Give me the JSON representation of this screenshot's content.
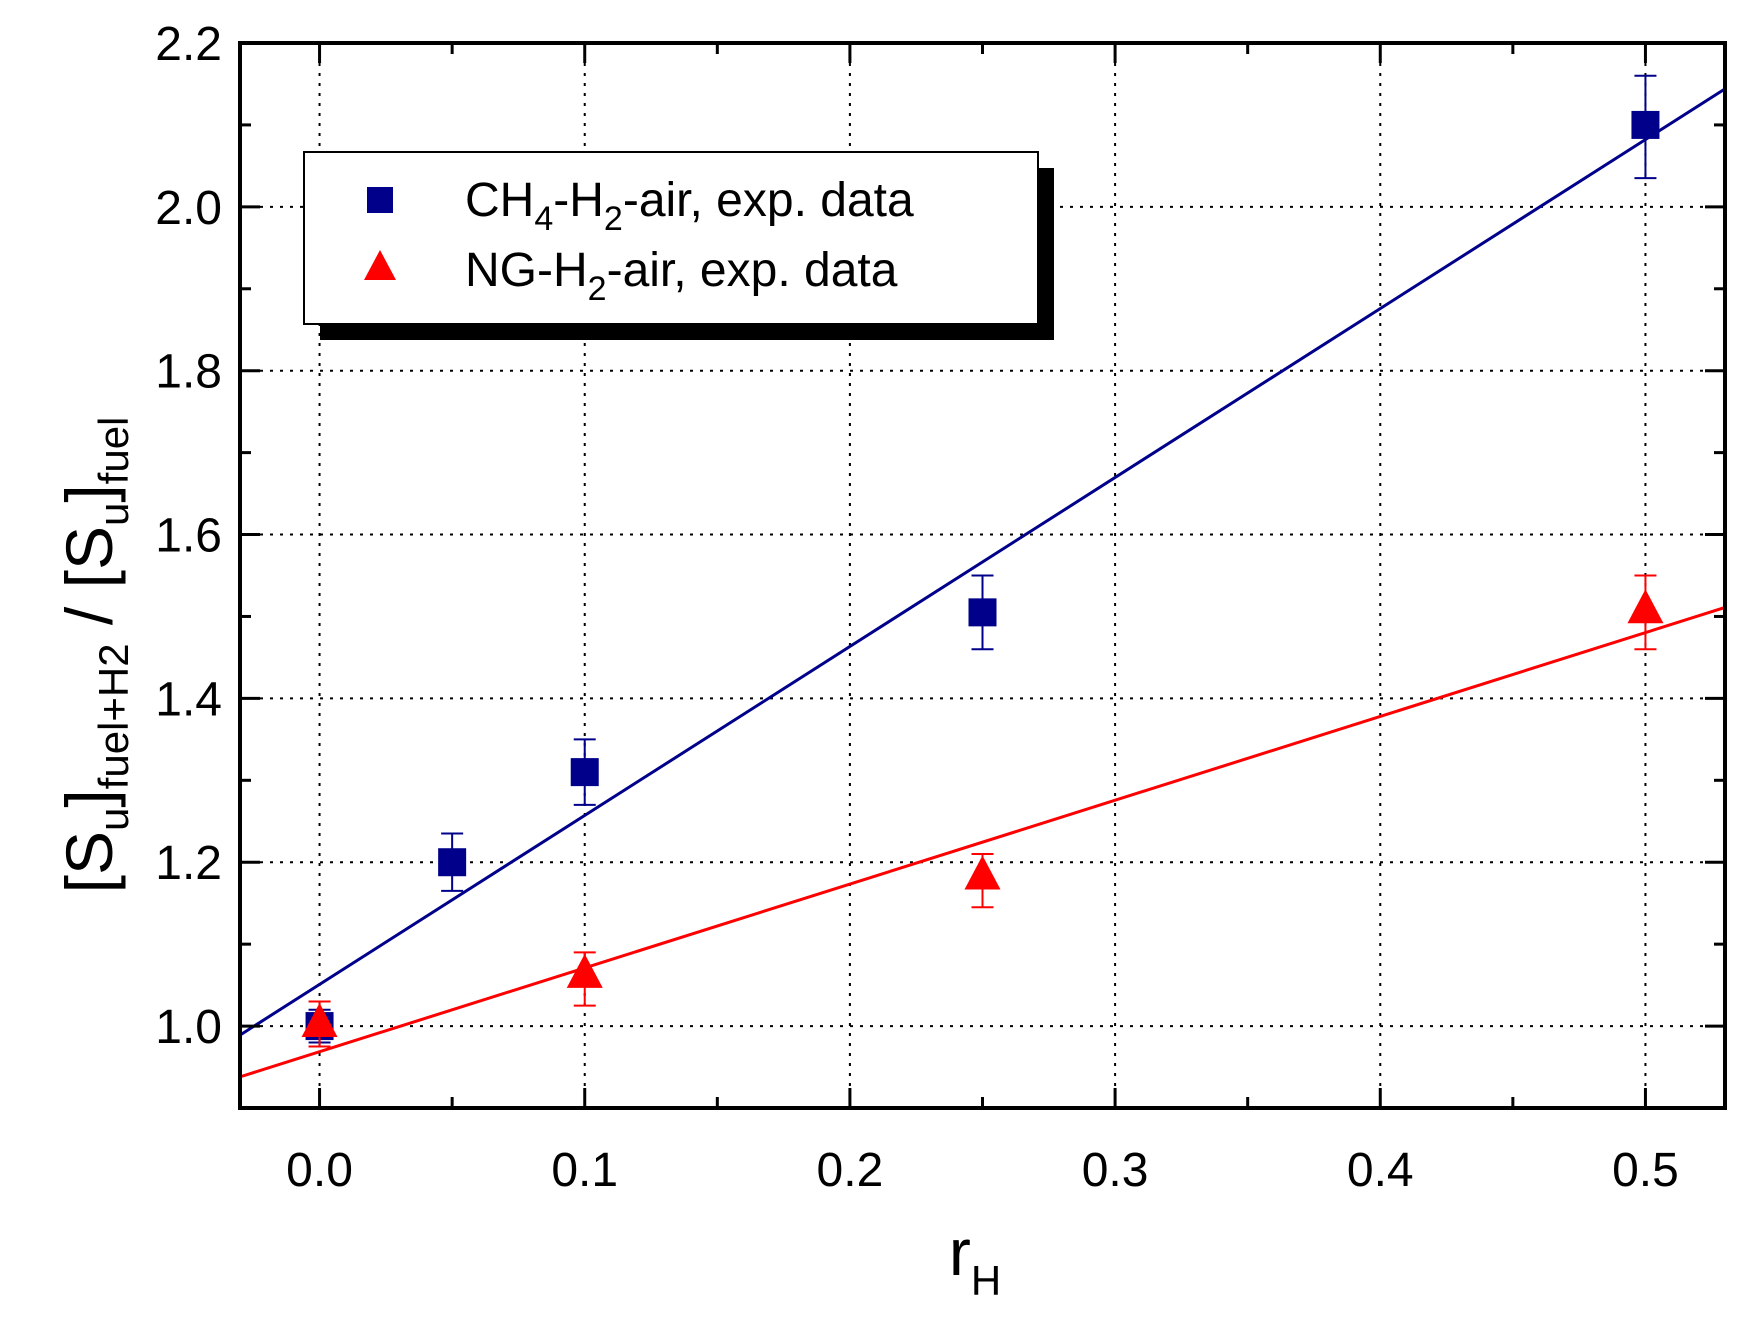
{
  "chart_data": {
    "type": "scatter",
    "title": "",
    "xlabel": {
      "main": "r",
      "sub": "H"
    },
    "ylabel": {
      "p1": "[S",
      "s1": "u",
      "p2": "]",
      "s2": "fuel+H2",
      "p3": " / [S",
      "s3": "u",
      "p4": "]",
      "s4": "fuel"
    },
    "xlim": [
      -0.03,
      0.53
    ],
    "ylim": [
      0.9,
      2.2
    ],
    "x_ticks": [
      0.0,
      0.1,
      0.2,
      0.3,
      0.4,
      0.5
    ],
    "x_tick_labels": [
      "0.0",
      "0.1",
      "0.2",
      "0.3",
      "0.4",
      "0.5"
    ],
    "y_ticks": [
      1.0,
      1.2,
      1.4,
      1.6,
      1.8,
      2.0,
      2.2
    ],
    "y_tick_labels": [
      "1.0",
      "1.2",
      "1.4",
      "1.6",
      "1.8",
      "2.0",
      "2.2"
    ],
    "grid": true,
    "legend_position": "top-left",
    "series": [
      {
        "name": "CH4-H2-air, exp. data",
        "legend": {
          "p1": "CH",
          "s1": "4",
          "p2": "-H",
          "s2": "2",
          "p3": "-air, exp. data"
        },
        "marker": "square",
        "color": "#00008b",
        "x": [
          0.0,
          0.05,
          0.1,
          0.25,
          0.5
        ],
        "y": [
          1.0,
          1.2,
          1.31,
          1.505,
          2.1
        ],
        "err_up": [
          0.02,
          0.035,
          0.04,
          0.045,
          0.06
        ],
        "err_down": [
          0.02,
          0.035,
          0.04,
          0.045,
          0.065
        ],
        "fit_line": {
          "x": [
            -0.03,
            0.53
          ],
          "y": [
            0.989,
            2.144
          ]
        }
      },
      {
        "name": "NG-H2-air, exp. data",
        "legend": {
          "p1": "NG-H",
          "s1": "2",
          "p2": "-air, exp. data"
        },
        "marker": "triangle",
        "color": "#ff0000",
        "x": [
          0.0,
          0.1,
          0.25,
          0.5
        ],
        "y": [
          1.005,
          1.065,
          1.185,
          1.51
        ],
        "err_up": [
          0.025,
          0.025,
          0.025,
          0.04
        ],
        "err_down": [
          0.03,
          0.04,
          0.04,
          0.05
        ],
        "fit_line": {
          "x": [
            -0.03,
            0.53
          ],
          "y": [
            0.938,
            1.511
          ]
        }
      }
    ]
  }
}
